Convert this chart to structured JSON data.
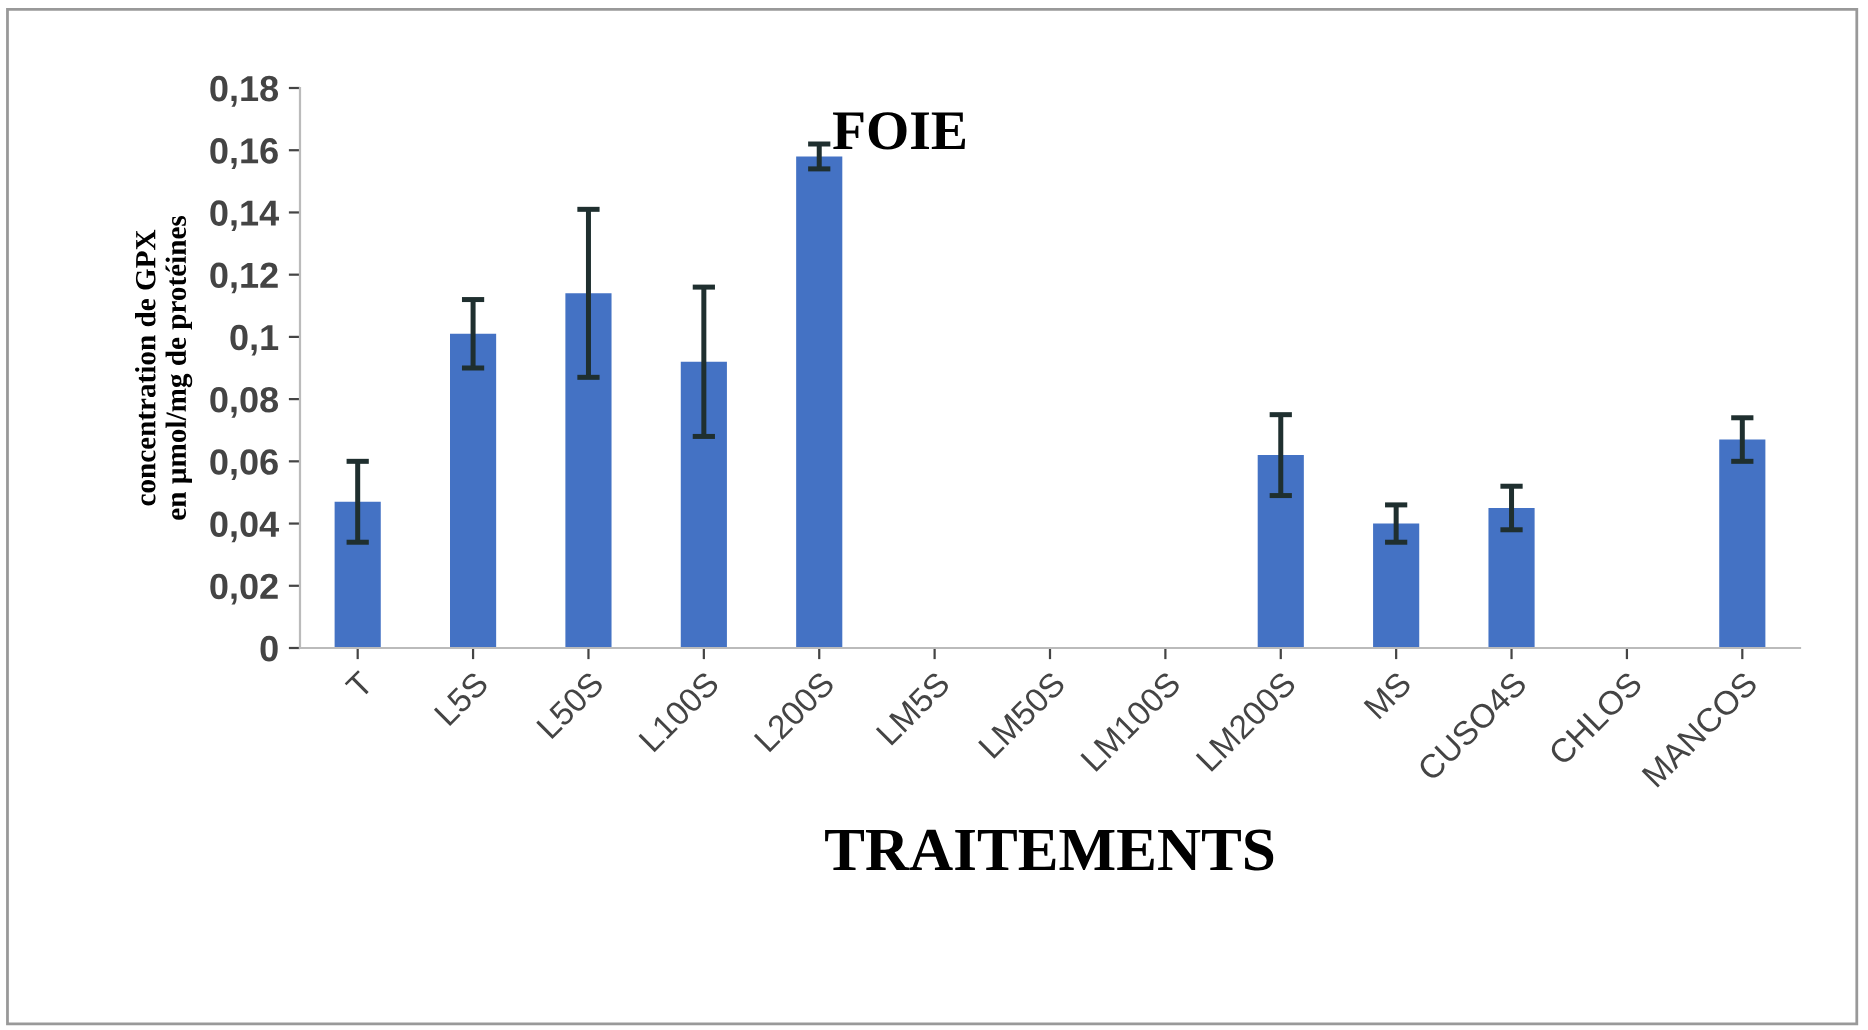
{
  "chart_data": {
    "type": "bar",
    "title": "FOIE",
    "xlabel": "TRAITEMENTS",
    "ylabel": "concentration de GPX\nen µmol/mg de protéines",
    "categories": [
      "T",
      "L5S",
      "L50S",
      "L100S",
      "L200S",
      "LM5S",
      "LM50S",
      "LM100S",
      "LM200S",
      "MS",
      "CUSO4S",
      "CHLOS",
      "MANCOS"
    ],
    "values": [
      0.047,
      0.101,
      0.114,
      0.092,
      0.158,
      null,
      null,
      null,
      0.062,
      0.04,
      0.045,
      null,
      0.067
    ],
    "errors": [
      0.013,
      0.011,
      0.027,
      0.024,
      0.004,
      null,
      null,
      null,
      0.013,
      0.006,
      0.007,
      null,
      0.007
    ],
    "color": "#4472c4",
    "ylim": [
      0,
      0.18
    ],
    "yticks": [
      {
        "value": 0,
        "label": "0"
      },
      {
        "value": 0.02,
        "label": "0,02"
      },
      {
        "value": 0.04,
        "label": "0,04"
      },
      {
        "value": 0.06,
        "label": "0,06"
      },
      {
        "value": 0.08,
        "label": "0,08"
      },
      {
        "value": 0.1,
        "label": "0,1"
      },
      {
        "value": 0.12,
        "label": "0,12"
      },
      {
        "value": 0.14,
        "label": "0,14"
      },
      {
        "value": 0.16,
        "label": "0,16"
      },
      {
        "value": 0.18,
        "label": "0,18"
      }
    ],
    "grid": false,
    "legend": false
  }
}
